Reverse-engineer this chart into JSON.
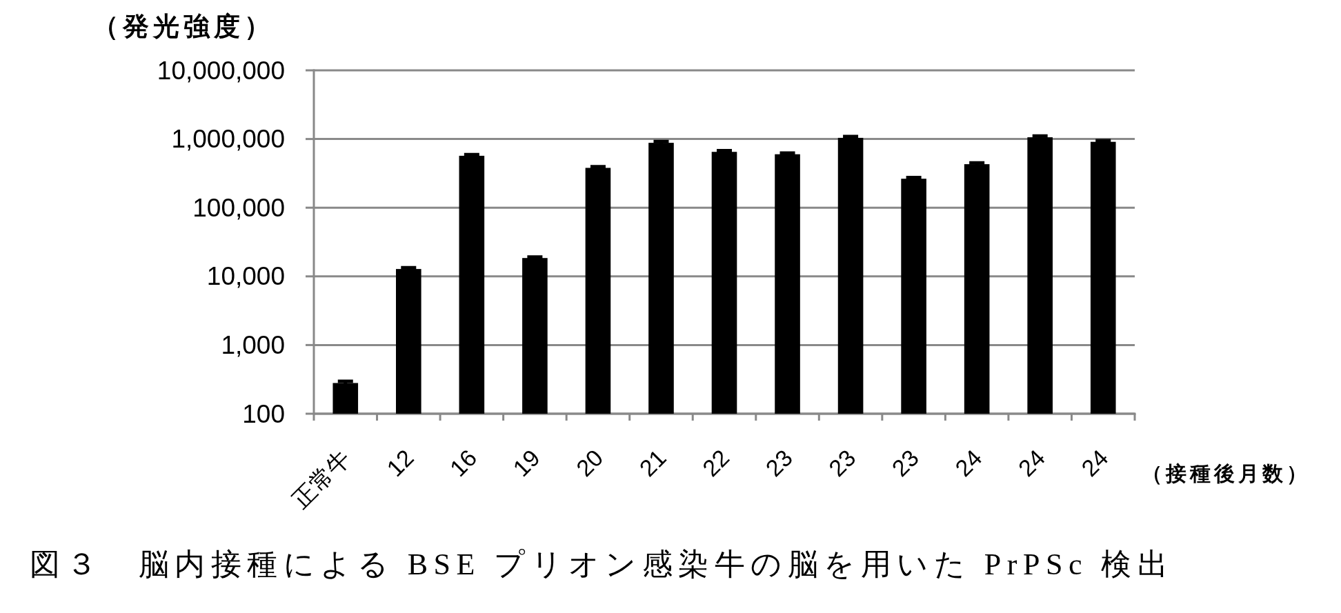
{
  "chart_data": {
    "type": "bar",
    "title": "図３　脳内接種による BSE プリオン感染牛の脳を用いた PrPSc 検出",
    "xlabel": "（接種後月数）",
    "ylabel": "（発光強度）",
    "categories": [
      "正常牛",
      "12",
      "16",
      "19",
      "20",
      "21",
      "22",
      "23",
      "23",
      "23",
      "24",
      "24",
      "24"
    ],
    "values": [
      280,
      12800,
      570000,
      18500,
      380000,
      880000,
      650000,
      600000,
      1040000,
      264000,
      430000,
      1060000,
      910000
    ],
    "errors": [
      17,
      600,
      24000,
      680,
      16000,
      37000,
      27000,
      25000,
      44000,
      11000,
      18000,
      45000,
      34000
    ],
    "color": "#000000",
    "log": true,
    "ylim": [
      100,
      10000000
    ],
    "yticks": [
      100,
      {
        "value": 1000,
        "label": "1,000"
      },
      {
        "value": 10000,
        "label": "10,000"
      },
      {
        "value": 100000,
        "label": "100,000"
      },
      {
        "value": 1000000,
        "label": "1,000,000"
      },
      {
        "value": 10000000,
        "label": "10,000,000"
      }
    ],
    "grid": "y"
  }
}
